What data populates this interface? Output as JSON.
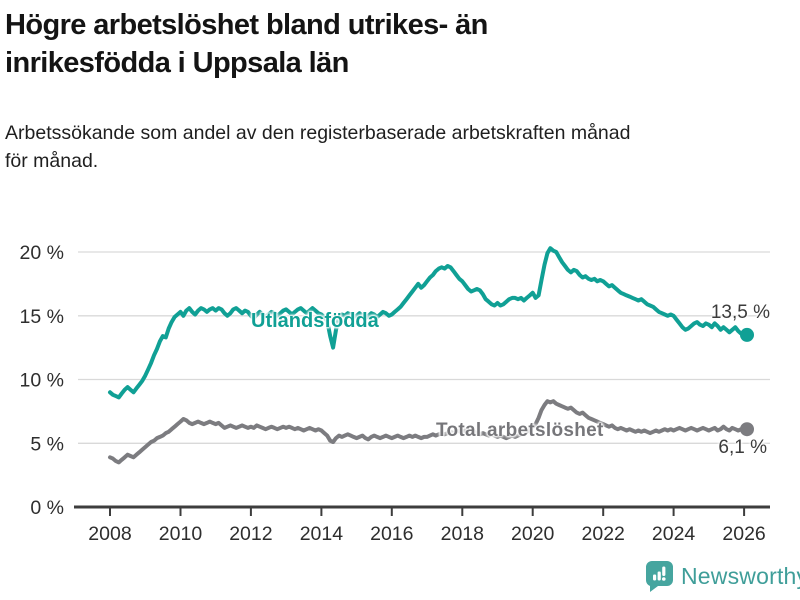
{
  "header": {
    "title_lines": [
      "Högre arbetslöshet bland utrikes- än",
      "inrikesfödda i Uppsala län"
    ],
    "subtitle_lines": [
      "Arbetssökande som andel av den registerbaserade arbetskraften månad",
      "för månad."
    ]
  },
  "chart_data": {
    "type": "line",
    "title": "Högre arbetslöshet bland utrikes- än inrikesfödda i Uppsala län",
    "subtitle": "Arbetssökande som andel av den registerbaserade arbetskraften månad för månad.",
    "x_unit": "month",
    "x_range": [
      "2008-01",
      "2026-02"
    ],
    "ylim": [
      0,
      21
    ],
    "grid": "horizontal",
    "legend_position": "inline-labels",
    "y_ticks": [
      {
        "v": 0,
        "label": "0 %"
      },
      {
        "v": 5,
        "label": "5 %"
      },
      {
        "v": 10,
        "label": "10 %"
      },
      {
        "v": 15,
        "label": "15 %"
      },
      {
        "v": 20,
        "label": "20 %"
      }
    ],
    "x_ticks": [
      {
        "year": 2008,
        "label": "2008"
      },
      {
        "year": 2010,
        "label": "2010"
      },
      {
        "year": 2012,
        "label": "2012"
      },
      {
        "year": 2014,
        "label": "2014"
      },
      {
        "year": 2016,
        "label": "2016"
      },
      {
        "year": 2018,
        "label": "2018"
      },
      {
        "year": 2020,
        "label": "2020"
      },
      {
        "year": 2022,
        "label": "2022"
      },
      {
        "year": 2024,
        "label": "2024"
      },
      {
        "year": 2026,
        "label": "2026"
      }
    ],
    "series": [
      {
        "name": "Utlandsfödda",
        "color": "#10a095",
        "end_value": 13.5,
        "end_label": "13,5 %",
        "values": [
          9.0,
          8.8,
          8.7,
          8.6,
          8.9,
          9.2,
          9.4,
          9.2,
          9.0,
          9.3,
          9.6,
          9.9,
          10.3,
          10.8,
          11.3,
          11.9,
          12.4,
          13.0,
          13.4,
          13.3,
          14.0,
          14.5,
          14.9,
          15.1,
          15.3,
          15.0,
          15.4,
          15.6,
          15.3,
          15.1,
          15.4,
          15.6,
          15.5,
          15.3,
          15.5,
          15.6,
          15.4,
          15.6,
          15.5,
          15.2,
          15.0,
          15.2,
          15.5,
          15.6,
          15.4,
          15.2,
          15.4,
          15.3,
          15.0,
          14.8,
          15.1,
          15.3,
          15.1,
          14.9,
          15.1,
          15.3,
          15.2,
          15.0,
          15.2,
          15.4,
          15.5,
          15.3,
          15.1,
          15.3,
          15.5,
          15.6,
          15.4,
          15.2,
          15.4,
          15.6,
          15.4,
          15.2,
          15.1,
          14.9,
          14.6,
          13.4,
          12.5,
          13.9,
          14.9,
          15.1,
          15.0,
          15.2,
          15.1,
          14.9,
          15.0,
          15.2,
          15.0,
          14.8,
          15.0,
          15.2,
          15.1,
          14.9,
          15.1,
          15.3,
          15.2,
          15.0,
          15.1,
          15.3,
          15.5,
          15.7,
          16.0,
          16.3,
          16.6,
          16.9,
          17.2,
          17.5,
          17.2,
          17.4,
          17.7,
          18.0,
          18.2,
          18.5,
          18.7,
          18.8,
          18.7,
          18.9,
          18.8,
          18.5,
          18.2,
          17.9,
          17.7,
          17.4,
          17.1,
          16.9,
          17.0,
          17.1,
          17.0,
          16.7,
          16.3,
          16.1,
          15.9,
          15.8,
          16.0,
          15.8,
          15.9,
          16.1,
          16.3,
          16.4,
          16.4,
          16.3,
          16.4,
          16.2,
          16.4,
          16.6,
          16.8,
          16.4,
          16.6,
          17.8,
          19.0,
          19.9,
          20.3,
          20.1,
          20.0,
          19.6,
          19.2,
          18.9,
          18.6,
          18.4,
          18.6,
          18.5,
          18.2,
          18.0,
          18.1,
          17.9,
          17.8,
          17.9,
          17.7,
          17.8,
          17.7,
          17.5,
          17.3,
          17.4,
          17.2,
          17.0,
          16.8,
          16.7,
          16.6,
          16.5,
          16.4,
          16.3,
          16.2,
          16.3,
          16.1,
          15.9,
          15.8,
          15.7,
          15.5,
          15.3,
          15.2,
          15.1,
          15.0,
          15.1,
          15.0,
          14.7,
          14.4,
          14.1,
          13.9,
          14.0,
          14.2,
          14.4,
          14.5,
          14.3,
          14.2,
          14.4,
          14.3,
          14.1,
          14.4,
          14.2,
          13.9,
          14.1,
          13.9,
          13.7,
          13.9,
          14.1,
          13.8,
          13.6,
          13.6,
          13.5
        ]
      },
      {
        "name": "Total arbetslöshet",
        "color": "#7c7c80",
        "end_value": 6.1,
        "end_label": "6,1 %",
        "values": [
          3.9,
          3.8,
          3.6,
          3.5,
          3.7,
          3.9,
          4.1,
          4.0,
          3.9,
          4.1,
          4.3,
          4.5,
          4.7,
          4.9,
          5.1,
          5.2,
          5.4,
          5.5,
          5.6,
          5.8,
          5.9,
          6.1,
          6.3,
          6.5,
          6.7,
          6.9,
          6.8,
          6.6,
          6.5,
          6.6,
          6.7,
          6.6,
          6.5,
          6.6,
          6.7,
          6.6,
          6.5,
          6.6,
          6.4,
          6.2,
          6.3,
          6.4,
          6.3,
          6.2,
          6.3,
          6.4,
          6.3,
          6.2,
          6.3,
          6.2,
          6.4,
          6.3,
          6.2,
          6.1,
          6.2,
          6.3,
          6.2,
          6.1,
          6.2,
          6.3,
          6.2,
          6.3,
          6.2,
          6.1,
          6.2,
          6.1,
          6.0,
          6.1,
          6.2,
          6.1,
          6.0,
          6.1,
          6.0,
          5.8,
          5.6,
          5.2,
          5.1,
          5.4,
          5.6,
          5.5,
          5.6,
          5.7,
          5.6,
          5.5,
          5.4,
          5.5,
          5.6,
          5.4,
          5.3,
          5.5,
          5.6,
          5.5,
          5.4,
          5.5,
          5.6,
          5.5,
          5.4,
          5.5,
          5.6,
          5.5,
          5.4,
          5.5,
          5.6,
          5.5,
          5.6,
          5.5,
          5.4,
          5.5,
          5.5,
          5.6,
          5.7,
          5.6,
          5.7,
          5.8,
          5.7,
          5.8,
          5.9,
          5.8,
          5.9,
          6.0,
          5.9,
          6.0,
          5.9,
          5.8,
          5.9,
          5.8,
          5.7,
          5.8,
          5.7,
          5.6,
          5.7,
          5.6,
          5.5,
          5.6,
          5.5,
          5.4,
          5.5,
          5.6,
          5.5,
          5.6,
          5.7,
          5.8,
          5.9,
          6.1,
          6.3,
          6.5,
          7.0,
          7.6,
          8.0,
          8.3,
          8.2,
          8.3,
          8.1,
          8.0,
          7.9,
          7.8,
          7.7,
          7.8,
          7.6,
          7.4,
          7.3,
          7.4,
          7.2,
          7.0,
          6.9,
          6.8,
          6.7,
          6.6,
          6.5,
          6.4,
          6.3,
          6.4,
          6.2,
          6.1,
          6.2,
          6.1,
          6.0,
          6.1,
          6.0,
          5.9,
          6.0,
          5.9,
          6.0,
          5.9,
          5.8,
          5.9,
          6.0,
          5.9,
          6.0,
          6.1,
          6.0,
          6.1,
          6.0,
          6.1,
          6.2,
          6.1,
          6.0,
          6.1,
          6.2,
          6.1,
          6.0,
          6.1,
          6.2,
          6.1,
          6.0,
          6.1,
          6.2,
          6.0,
          6.1,
          6.3,
          6.1,
          6.0,
          6.2,
          6.1,
          6.0,
          6.1,
          6.0,
          6.1
        ]
      }
    ],
    "colors": {
      "grid": "#d9d9d9",
      "axis": "#3d3d3d",
      "tick_label": "#2e2e2e",
      "value_label": "#3b3b3b"
    }
  },
  "footer": {
    "brand": "Newsworthy",
    "brand_color": "#3f9e99",
    "icon_color": "#46a59f"
  }
}
